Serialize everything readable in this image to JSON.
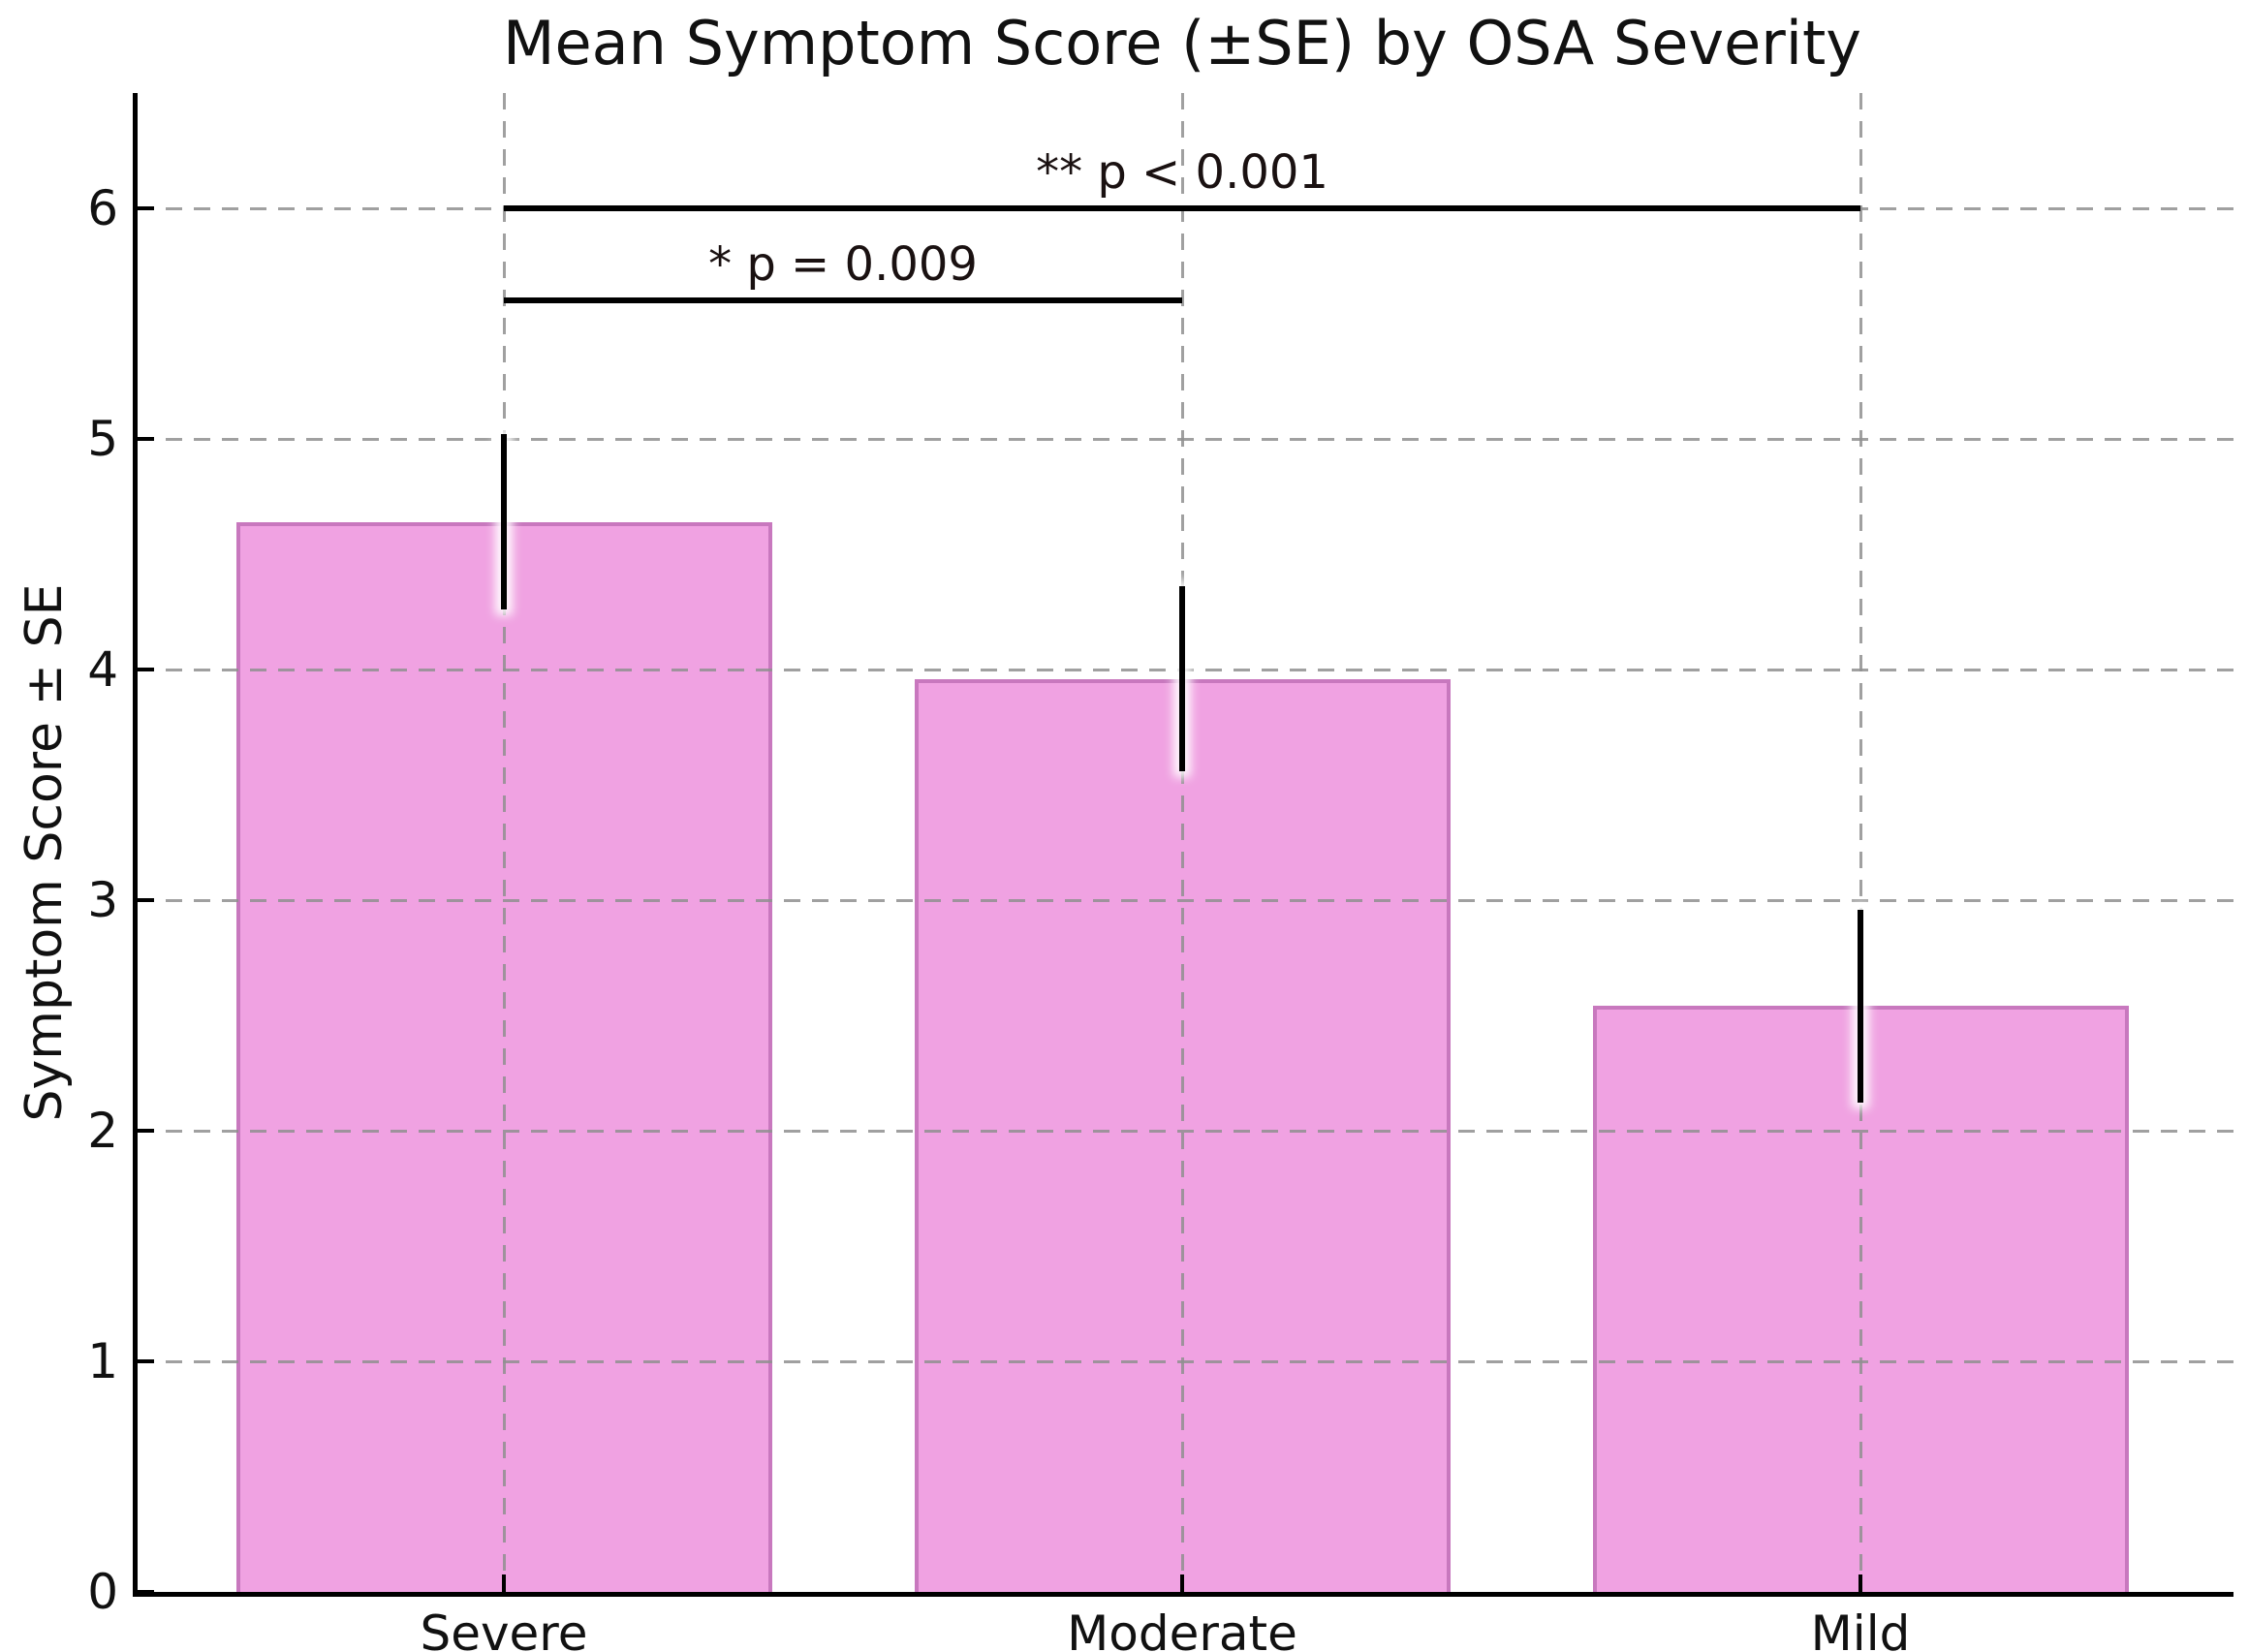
{
  "figure": {
    "background": "#ffffff"
  },
  "chart_data": {
    "type": "bar",
    "title": "Mean Symptom Score (±SE) by OSA Severity",
    "xlabel": "",
    "ylabel": "Symptom Score ± SE",
    "categories": [
      "Severe",
      "Moderate",
      "Mild"
    ],
    "values": [
      4.64,
      3.96,
      2.54
    ],
    "errors": [
      0.38,
      0.4,
      0.42
    ],
    "error_type": "SE",
    "yticks": [
      0,
      1,
      2,
      3,
      4,
      5,
      6
    ],
    "ylim": [
      0,
      6.5
    ],
    "xlim": [
      -0.54,
      2.55
    ],
    "bar_width": 0.79,
    "grid": true,
    "gridline_style": "dashed",
    "legend": "none",
    "colors": {
      "bar_fill": "#f0a2e2",
      "bar_edge": "#c878be",
      "error_bar": "#000000",
      "gridline": "#8f8f8f",
      "axis": "#000000",
      "annotation_text": "#1a1111"
    },
    "significance": [
      {
        "label": "** p < 0.001",
        "from_index": 0,
        "to_index": 2,
        "y": 6.0
      },
      {
        "label": "* p = 0.009",
        "from_index": 0,
        "to_index": 1,
        "y": 5.6
      }
    ]
  }
}
